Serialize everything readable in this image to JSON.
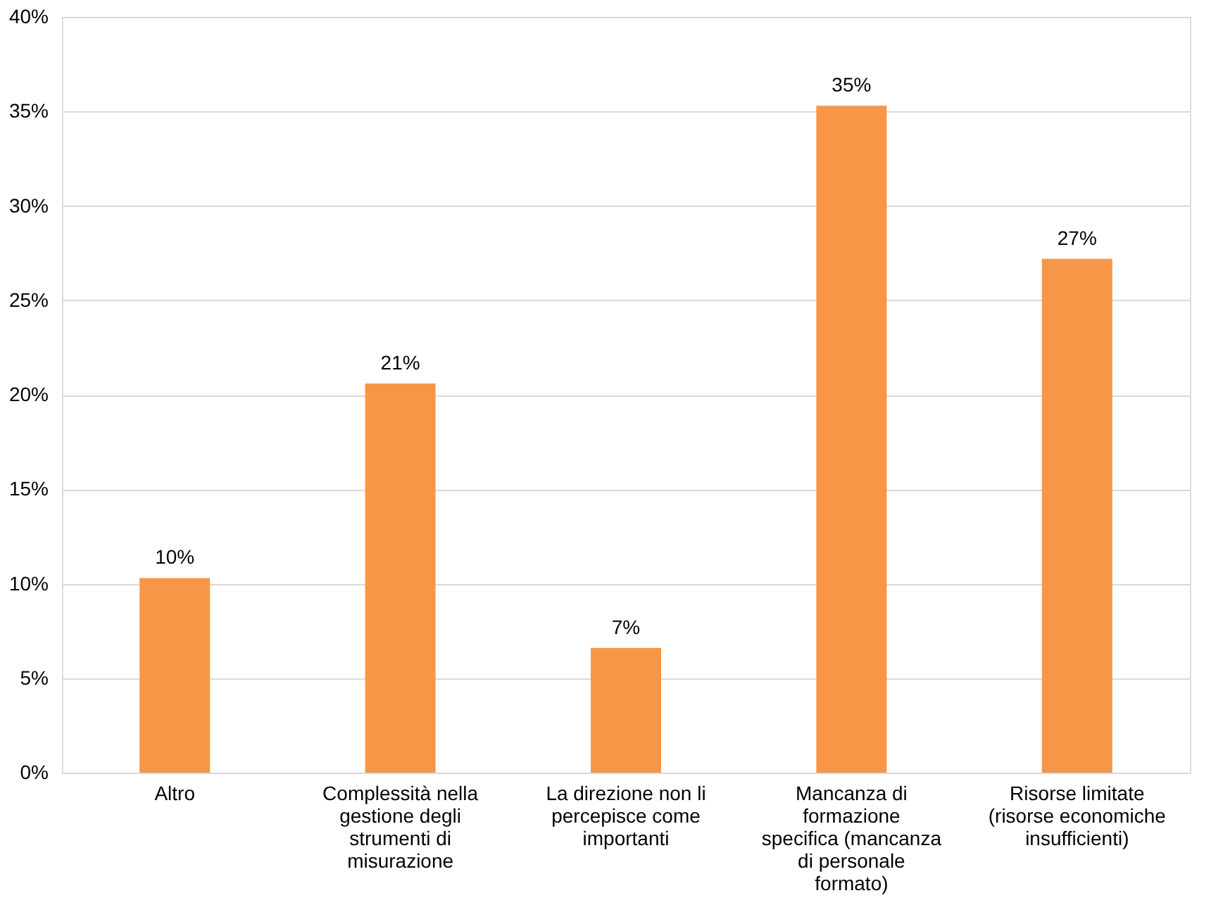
{
  "chart_data": {
    "type": "bar",
    "categories": [
      "Altro",
      "Complessità nella gestione degli strumenti di misurazione",
      "La direzione non li percepisce come importanti",
      "Mancanza di formazione specifica (mancanza di personale formato)",
      "Risorse limitate (risorse economiche insufficienti)"
    ],
    "values": [
      10.3,
      20.6,
      6.6,
      35.3,
      27.2
    ],
    "value_labels": [
      "10%",
      "21%",
      "7%",
      "35%",
      "27%"
    ],
    "color": "#f79646",
    "ylim": [
      0,
      40
    ],
    "yticks": [
      {
        "value": 0,
        "label": "0%"
      },
      {
        "value": 5,
        "label": "5%"
      },
      {
        "value": 10,
        "label": "10%"
      },
      {
        "value": 15,
        "label": "15%"
      },
      {
        "value": 20,
        "label": "20%"
      },
      {
        "value": 25,
        "label": "25%"
      },
      {
        "value": 30,
        "label": "30%"
      },
      {
        "value": 35,
        "label": "35%"
      },
      {
        "value": 40,
        "label": "40%"
      }
    ],
    "grid": "y"
  }
}
